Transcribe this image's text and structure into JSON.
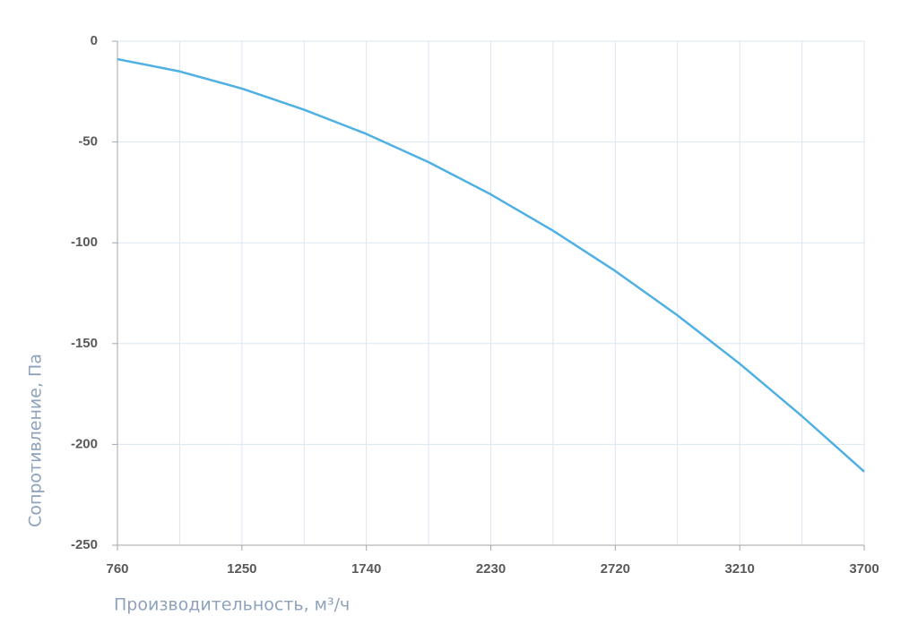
{
  "chart_data": {
    "type": "line",
    "x_label": "Производительность, м³/ч",
    "y_label": "Сопротивление, Па",
    "x": [
      760,
      1005,
      1250,
      1495,
      1740,
      1985,
      2230,
      2475,
      2720,
      2965,
      3210,
      3455,
      3700
    ],
    "series": [
      {
        "name": "Сопротивление",
        "color": "#4fb0e3",
        "values": [
          -8.9,
          -15,
          -23.5,
          -34,
          -46,
          -60,
          -76,
          -94,
          -114,
          -136,
          -160,
          -186,
          -213.5
        ]
      }
    ],
    "xlim": [
      760,
      3700
    ],
    "xticks": [
      760,
      1250,
      1740,
      2230,
      2720,
      3210,
      3700
    ],
    "ylim": [
      -250,
      0
    ],
    "yticks": [
      -250,
      -200,
      -150,
      -100,
      -50,
      0
    ],
    "grid": true
  }
}
